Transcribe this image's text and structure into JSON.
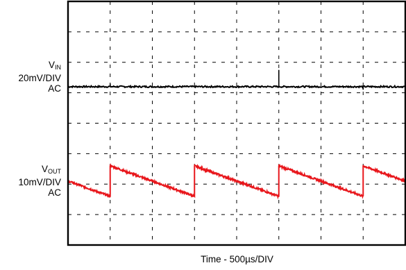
{
  "chart_data": {
    "type": "line",
    "title": "",
    "xlabel": "Time - 500µs/DIV",
    "ylabel": "",
    "x_divisions": 8,
    "y_divisions": 8,
    "grid": true,
    "colors": {
      "vin": "#000000",
      "vout": "#e8161b",
      "grid": "#000000",
      "frame": "#000000"
    },
    "channels": [
      {
        "id": "vin",
        "name_main": "V",
        "name_sub": "IN",
        "scale": "20mV/DIV",
        "coupling": "AC",
        "color": "#000000",
        "baseline_div": 5.2,
        "spikes": [
          {
            "t_div": 1.0,
            "height_div": 0.1
          },
          {
            "t_div": 5.0,
            "height_div": 0.55
          },
          {
            "t_div": 7.0,
            "height_div": -0.1
          }
        ]
      },
      {
        "id": "vout",
        "name_main": "V",
        "name_sub": "OUT",
        "scale": "10mV/DIV",
        "coupling": "AC",
        "color": "#e8161b",
        "waveform": "sawtooth",
        "period_div": 2.0,
        "phase_div": 1.0,
        "high_div": 2.6,
        "low_div": 1.6
      }
    ]
  }
}
